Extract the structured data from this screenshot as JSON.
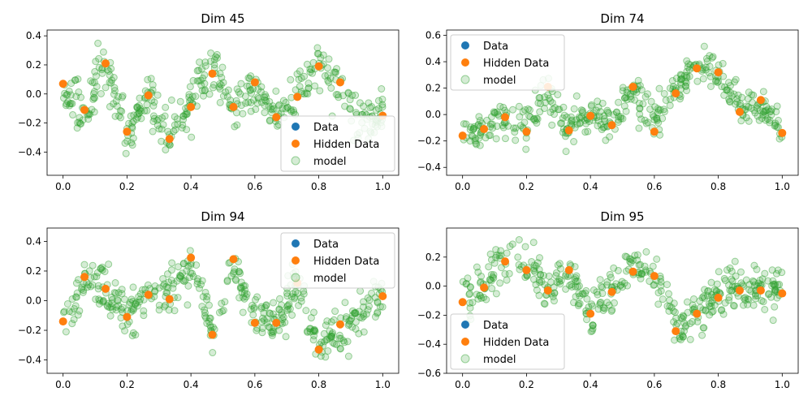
{
  "colors": {
    "data": "#1f77b4",
    "hidden": "#ff7f0e",
    "model": "#2ca02c"
  },
  "chart_data": [
    {
      "type": "scatter",
      "title": "Dim 45",
      "xlim": [
        -0.05,
        1.05
      ],
      "ylim": [
        -0.56,
        0.44
      ],
      "xticks": [
        0.0,
        0.2,
        0.4,
        0.6,
        0.8,
        1.0
      ],
      "yticks": [
        -0.4,
        -0.2,
        0.0,
        0.2,
        0.4
      ],
      "xticklabels": [
        "0.0",
        "0.2",
        "0.4",
        "0.6",
        "0.8",
        "1.0"
      ],
      "yticklabels": [
        "−0.4",
        "−0.2",
        "0.0",
        "0.2",
        "0.4"
      ],
      "legend": {
        "position": "lower-right",
        "entries": [
          "Data",
          "Hidden Data",
          "model"
        ]
      },
      "series": [
        {
          "name": "Hidden Data",
          "x": [
            0.0,
            0.067,
            0.133,
            0.2,
            0.267,
            0.333,
            0.4,
            0.467,
            0.533,
            0.6,
            0.667,
            0.733,
            0.8,
            0.867,
            1.0
          ],
          "y": [
            0.07,
            -0.11,
            0.21,
            -0.26,
            -0.01,
            -0.31,
            -0.09,
            0.14,
            -0.09,
            0.08,
            -0.16,
            -0.02,
            0.19,
            0.08,
            -0.15
          ]
        },
        {
          "name": "model",
          "curve": [
            [
              0.0,
              0.0
            ],
            [
              0.07,
              -0.12
            ],
            [
              0.13,
              0.22
            ],
            [
              0.2,
              -0.28
            ],
            [
              0.27,
              0.0
            ],
            [
              0.33,
              -0.3
            ],
            [
              0.4,
              -0.05
            ],
            [
              0.47,
              0.2
            ],
            [
              0.53,
              -0.12
            ],
            [
              0.6,
              0.05
            ],
            [
              0.67,
              -0.15
            ],
            [
              0.73,
              0.02
            ],
            [
              0.8,
              0.2
            ],
            [
              0.87,
              0.05
            ],
            [
              0.93,
              -0.2
            ],
            [
              1.0,
              -0.1
            ]
          ]
        }
      ]
    },
    {
      "type": "scatter",
      "title": "Dim 74",
      "xlim": [
        -0.05,
        1.05
      ],
      "ylim": [
        -0.46,
        0.64
      ],
      "xticks": [
        0.0,
        0.2,
        0.4,
        0.6,
        0.8,
        1.0
      ],
      "yticks": [
        -0.4,
        -0.2,
        0.0,
        0.2,
        0.4,
        0.6
      ],
      "xticklabels": [
        "0.0",
        "0.2",
        "0.4",
        "0.6",
        "0.8",
        "1.0"
      ],
      "yticklabels": [
        "−0.4",
        "−0.2",
        "0.0",
        "0.2",
        "0.4",
        "0.6"
      ],
      "legend": {
        "position": "upper-left",
        "entries": [
          "Data",
          "Hidden Data",
          "model"
        ]
      },
      "series": [
        {
          "name": "Hidden Data",
          "x": [
            0.0,
            0.067,
            0.133,
            0.2,
            0.267,
            0.333,
            0.4,
            0.467,
            0.533,
            0.6,
            0.667,
            0.733,
            0.8,
            0.867,
            0.933,
            1.0
          ],
          "y": [
            -0.16,
            -0.11,
            -0.02,
            -0.13,
            0.21,
            -0.12,
            -0.01,
            -0.08,
            0.21,
            -0.13,
            0.16,
            0.35,
            0.32,
            0.02,
            0.11,
            -0.14
          ]
        },
        {
          "name": "model",
          "curve": [
            [
              0.0,
              -0.15
            ],
            [
              0.07,
              -0.1
            ],
            [
              0.13,
              0.0
            ],
            [
              0.2,
              -0.1
            ],
            [
              0.27,
              0.15
            ],
            [
              0.33,
              -0.1
            ],
            [
              0.4,
              0.0
            ],
            [
              0.47,
              -0.05
            ],
            [
              0.53,
              0.2
            ],
            [
              0.6,
              -0.05
            ],
            [
              0.67,
              0.2
            ],
            [
              0.73,
              0.38
            ],
            [
              0.8,
              0.3
            ],
            [
              0.87,
              0.05
            ],
            [
              0.93,
              0.1
            ],
            [
              1.0,
              -0.15
            ]
          ]
        }
      ]
    },
    {
      "type": "scatter",
      "title": "Dim 94",
      "xlim": [
        -0.05,
        1.05
      ],
      "ylim": [
        -0.49,
        0.49
      ],
      "xticks": [
        0.0,
        0.2,
        0.4,
        0.6,
        0.8,
        1.0
      ],
      "yticks": [
        -0.4,
        -0.2,
        0.0,
        0.2,
        0.4
      ],
      "xticklabels": [
        "0.0",
        "0.2",
        "0.4",
        "0.6",
        "0.8",
        "1.0"
      ],
      "yticklabels": [
        "−0.4",
        "−0.2",
        "0.0",
        "0.2",
        "0.4"
      ],
      "legend": {
        "position": "upper-right",
        "entries": [
          "Data",
          "Hidden Data",
          "model"
        ]
      },
      "series": [
        {
          "name": "Hidden Data",
          "x": [
            0.0,
            0.067,
            0.133,
            0.2,
            0.267,
            0.333,
            0.4,
            0.467,
            0.533,
            0.6,
            0.667,
            0.733,
            0.8,
            0.867,
            1.0
          ],
          "y": [
            -0.14,
            0.16,
            0.08,
            -0.11,
            0.04,
            0.01,
            0.29,
            -0.23,
            0.28,
            -0.15,
            -0.15,
            0.12,
            -0.33,
            -0.16,
            0.03
          ]
        },
        {
          "name": "model",
          "curve": [
            [
              0.0,
              -0.15
            ],
            [
              0.07,
              0.15
            ],
            [
              0.13,
              0.1
            ],
            [
              0.2,
              -0.1
            ],
            [
              0.27,
              0.05
            ],
            [
              0.33,
              0.05
            ],
            [
              0.4,
              0.25
            ],
            [
              0.47,
              -0.2
            ],
            [
              0.53,
              0.25
            ],
            [
              0.6,
              -0.1
            ],
            [
              0.67,
              -0.15
            ],
            [
              0.73,
              0.1
            ],
            [
              0.8,
              -0.3
            ],
            [
              0.87,
              -0.2
            ],
            [
              0.93,
              -0.1
            ],
            [
              1.0,
              0.05
            ]
          ]
        }
      ]
    },
    {
      "type": "scatter",
      "title": "Dim 95",
      "xlim": [
        -0.05,
        1.05
      ],
      "ylim": [
        -0.6,
        0.4
      ],
      "xticks": [
        0.0,
        0.2,
        0.4,
        0.6,
        0.8,
        1.0
      ],
      "yticks": [
        -0.6,
        -0.4,
        -0.2,
        0.0,
        0.2
      ],
      "xticklabels": [
        "0.0",
        "0.2",
        "0.4",
        "0.6",
        "0.8",
        "1.0"
      ],
      "yticklabels": [
        "−0.6",
        "−0.4",
        "−0.2",
        "0.0",
        "0.2"
      ],
      "legend": {
        "position": "lower-left",
        "entries": [
          "Data",
          "Hidden Data",
          "model"
        ]
      },
      "series": [
        {
          "name": "Hidden Data",
          "x": [
            0.0,
            0.067,
            0.133,
            0.2,
            0.267,
            0.333,
            0.4,
            0.467,
            0.533,
            0.6,
            0.667,
            0.733,
            0.8,
            0.867,
            0.933,
            1.0
          ],
          "y": [
            -0.11,
            -0.01,
            0.17,
            0.11,
            -0.03,
            0.11,
            -0.19,
            -0.04,
            0.1,
            0.07,
            -0.31,
            -0.19,
            -0.08,
            -0.03,
            -0.03,
            -0.05
          ]
        },
        {
          "name": "model",
          "curve": [
            [
              0.0,
              -0.1
            ],
            [
              0.07,
              0.0
            ],
            [
              0.13,
              0.18
            ],
            [
              0.2,
              0.15
            ],
            [
              0.27,
              0.0
            ],
            [
              0.33,
              0.08
            ],
            [
              0.4,
              -0.18
            ],
            [
              0.47,
              -0.02
            ],
            [
              0.53,
              0.15
            ],
            [
              0.6,
              0.05
            ],
            [
              0.67,
              -0.28
            ],
            [
              0.73,
              -0.2
            ],
            [
              0.8,
              -0.05
            ],
            [
              0.87,
              0.0
            ],
            [
              0.93,
              -0.05
            ],
            [
              1.0,
              -0.02
            ]
          ]
        }
      ]
    }
  ]
}
